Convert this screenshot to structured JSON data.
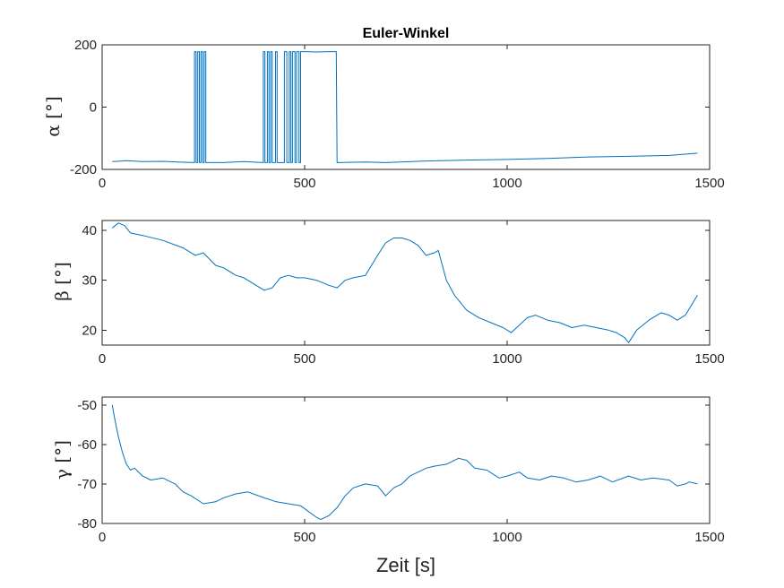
{
  "chart_data": [
    {
      "type": "line",
      "title": "Euler-Winkel",
      "ylabel": "α [°]",
      "xlabel": "",
      "xlim": [
        0,
        1500
      ],
      "ylim": [
        -200,
        200
      ],
      "xticks": [
        0,
        500,
        1000,
        1500
      ],
      "yticks": [
        -200,
        0,
        200
      ],
      "xtick_labels": [
        "0",
        "500",
        "1000",
        "1500"
      ],
      "ytick_labels": [
        "-200",
        "0",
        "200"
      ],
      "grid": false,
      "series_color": "#0072BD",
      "series": [
        {
          "x": [
            25,
            60,
            100,
            150,
            200,
            228,
            228,
            232,
            232,
            236,
            236,
            240,
            240,
            244,
            244,
            248,
            248,
            252,
            252,
            256,
            256,
            300,
            350,
            398,
            398,
            402,
            402,
            408,
            408,
            412,
            412,
            416,
            416,
            420,
            420,
            428,
            428,
            432,
            432,
            450,
            450,
            456,
            456,
            462,
            462,
            466,
            466,
            470,
            470,
            476,
            476,
            480,
            480,
            486,
            486,
            490,
            490,
            500,
            530,
            560,
            578,
            580,
            650,
            700,
            800,
            900,
            1000,
            1100,
            1200,
            1300,
            1400,
            1450,
            1470
          ],
          "y": [
            -175,
            -172,
            -175,
            -174,
            -177,
            -178,
            178,
            178,
            -178,
            -178,
            178,
            178,
            -178,
            -178,
            178,
            178,
            -178,
            -178,
            178,
            178,
            -178,
            -178,
            -175,
            -178,
            178,
            178,
            -178,
            -178,
            178,
            178,
            -178,
            -178,
            178,
            178,
            -178,
            -178,
            178,
            178,
            -178,
            -178,
            178,
            178,
            -178,
            -178,
            178,
            178,
            -178,
            -178,
            178,
            178,
            -178,
            -178,
            178,
            178,
            -178,
            -178,
            178,
            178,
            177,
            178,
            178,
            -178,
            -176,
            -178,
            -173,
            -170,
            -168,
            -165,
            -160,
            -158,
            -155,
            -150,
            -148
          ]
        }
      ]
    },
    {
      "type": "line",
      "title": "",
      "ylabel": "β [°]",
      "xlabel": "",
      "xlim": [
        0,
        1500
      ],
      "ylim": [
        17,
        42
      ],
      "xticks": [
        0,
        500,
        1000,
        1500
      ],
      "yticks": [
        20,
        30,
        40
      ],
      "xtick_labels": [
        "0",
        "500",
        "1000",
        "1500"
      ],
      "ytick_labels": [
        "20",
        "30",
        "40"
      ],
      "grid": false,
      "series_color": "#0072BD",
      "series": [
        {
          "x": [
            25,
            40,
            55,
            70,
            100,
            150,
            200,
            230,
            250,
            280,
            300,
            330,
            350,
            380,
            400,
            420,
            440,
            460,
            480,
            500,
            530,
            560,
            580,
            600,
            620,
            650,
            680,
            700,
            720,
            740,
            760,
            780,
            800,
            820,
            830,
            850,
            870,
            900,
            930,
            960,
            990,
            1010,
            1030,
            1050,
            1070,
            1100,
            1130,
            1160,
            1190,
            1220,
            1250,
            1270,
            1290,
            1300,
            1320,
            1350,
            1380,
            1400,
            1420,
            1440,
            1470
          ],
          "y": [
            40.5,
            41.5,
            41,
            39.5,
            39,
            38,
            36.5,
            35,
            35.5,
            33,
            32.5,
            31,
            30.5,
            29,
            28,
            28.5,
            30.5,
            31,
            30.5,
            30.5,
            30,
            29,
            28.5,
            30,
            30.5,
            31,
            35,
            37.5,
            38.5,
            38.5,
            38,
            37,
            35,
            35.5,
            36,
            30,
            27,
            24,
            22.5,
            21.5,
            20.5,
            19.5,
            21,
            22.5,
            23,
            22,
            21.5,
            20.5,
            21,
            20.5,
            20,
            19.5,
            18.5,
            17.5,
            20,
            22,
            23.5,
            23,
            22,
            23,
            27
          ]
        }
      ]
    },
    {
      "type": "line",
      "title": "",
      "ylabel": "γ [°]",
      "xlabel": "Zeit [s]",
      "xlim": [
        0,
        1500
      ],
      "ylim": [
        -80,
        -48
      ],
      "xticks": [
        0,
        500,
        1000,
        1500
      ],
      "yticks": [
        -80,
        -70,
        -60,
        -50
      ],
      "xtick_labels": [
        "0",
        "500",
        "1000",
        "1500"
      ],
      "ytick_labels": [
        "-80",
        "-70",
        "-60",
        "-50"
      ],
      "grid": false,
      "series_color": "#0072BD",
      "series": [
        {
          "x": [
            25,
            30,
            40,
            50,
            60,
            70,
            80,
            100,
            120,
            150,
            180,
            200,
            220,
            250,
            280,
            300,
            330,
            360,
            400,
            430,
            460,
            490,
            510,
            530,
            540,
            560,
            580,
            600,
            620,
            650,
            680,
            700,
            720,
            740,
            760,
            780,
            800,
            820,
            850,
            880,
            900,
            920,
            950,
            980,
            1000,
            1030,
            1050,
            1080,
            1110,
            1140,
            1170,
            1200,
            1230,
            1260,
            1300,
            1330,
            1360,
            1400,
            1420,
            1440,
            1450,
            1470
          ],
          "y": [
            -50,
            -53,
            -58,
            -62,
            -65,
            -66.5,
            -66,
            -68,
            -69,
            -68.5,
            -70,
            -72,
            -73,
            -75,
            -74.5,
            -73.5,
            -72.5,
            -72,
            -73.5,
            -74.5,
            -75,
            -75.5,
            -77,
            -78.5,
            -79,
            -78,
            -76,
            -73,
            -71,
            -70,
            -70.5,
            -73,
            -71,
            -70,
            -68,
            -67,
            -66,
            -65.5,
            -65,
            -63.5,
            -64,
            -66,
            -66.5,
            -68.5,
            -68,
            -67,
            -68.5,
            -69,
            -68,
            -68.5,
            -69.5,
            -69,
            -68,
            -69.5,
            -68,
            -69,
            -68.5,
            -69,
            -70.5,
            -70,
            -69.5,
            -70
          ]
        }
      ]
    }
  ]
}
